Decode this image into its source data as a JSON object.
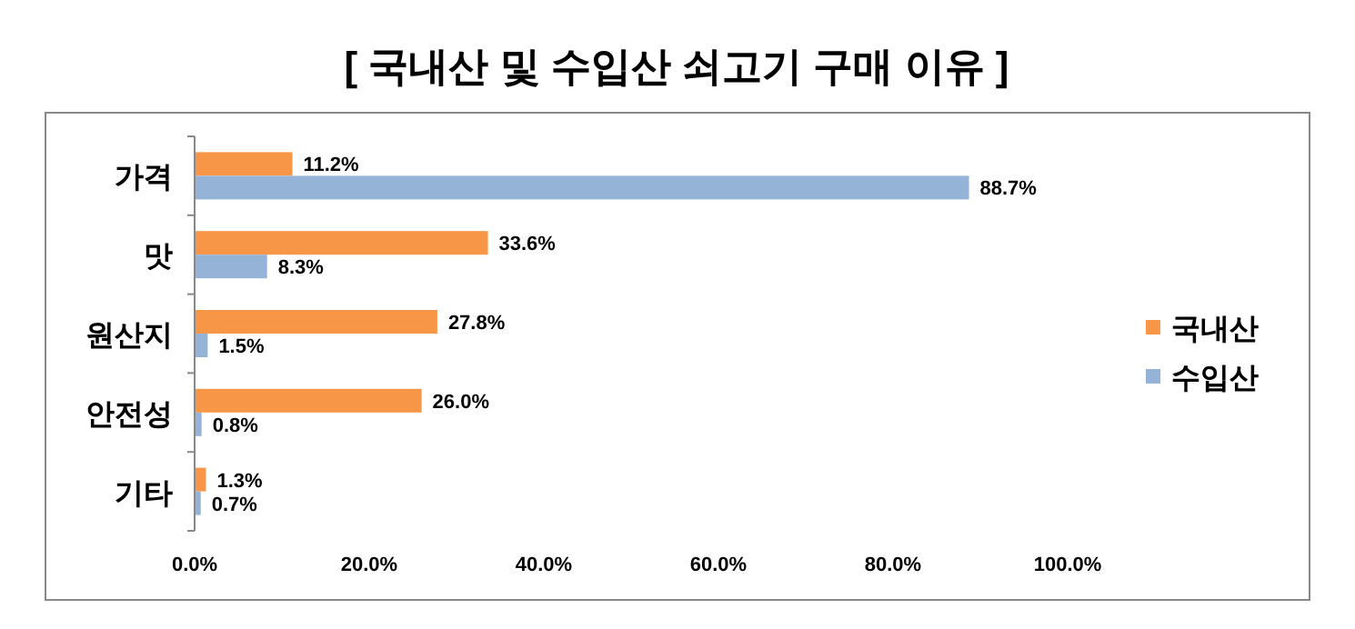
{
  "chart_data": {
    "type": "bar",
    "orientation": "horizontal",
    "title": "[ 국내산 및 수입산 쇠고기 구매 이유 ]",
    "categories": [
      "가격",
      "맛",
      "원산지",
      "안전성",
      "기타"
    ],
    "series": [
      {
        "name": "국내산",
        "color": "#f79646",
        "values": [
          11.2,
          33.6,
          27.8,
          26.0,
          1.3
        ],
        "value_labels": [
          "11.2%",
          "33.6%",
          "27.8%",
          "26.0%",
          "1.3%"
        ]
      },
      {
        "name": "수입산",
        "color": "#95b3d7",
        "values": [
          88.7,
          8.3,
          1.5,
          0.8,
          0.7
        ],
        "value_labels": [
          "88.7%",
          "8.3%",
          "1.5%",
          "0.8%",
          "0.7%"
        ]
      }
    ],
    "xlim": [
      0,
      100
    ],
    "xticks": [
      {
        "value": 0,
        "label": "0.0%"
      },
      {
        "value": 20,
        "label": "20.0%"
      },
      {
        "value": 40,
        "label": "40.0%"
      },
      {
        "value": 60,
        "label": "60.0%"
      },
      {
        "value": 80,
        "label": "80.0%"
      },
      {
        "value": 100,
        "label": "100.0%"
      }
    ],
    "legend": "right",
    "grid": false
  }
}
